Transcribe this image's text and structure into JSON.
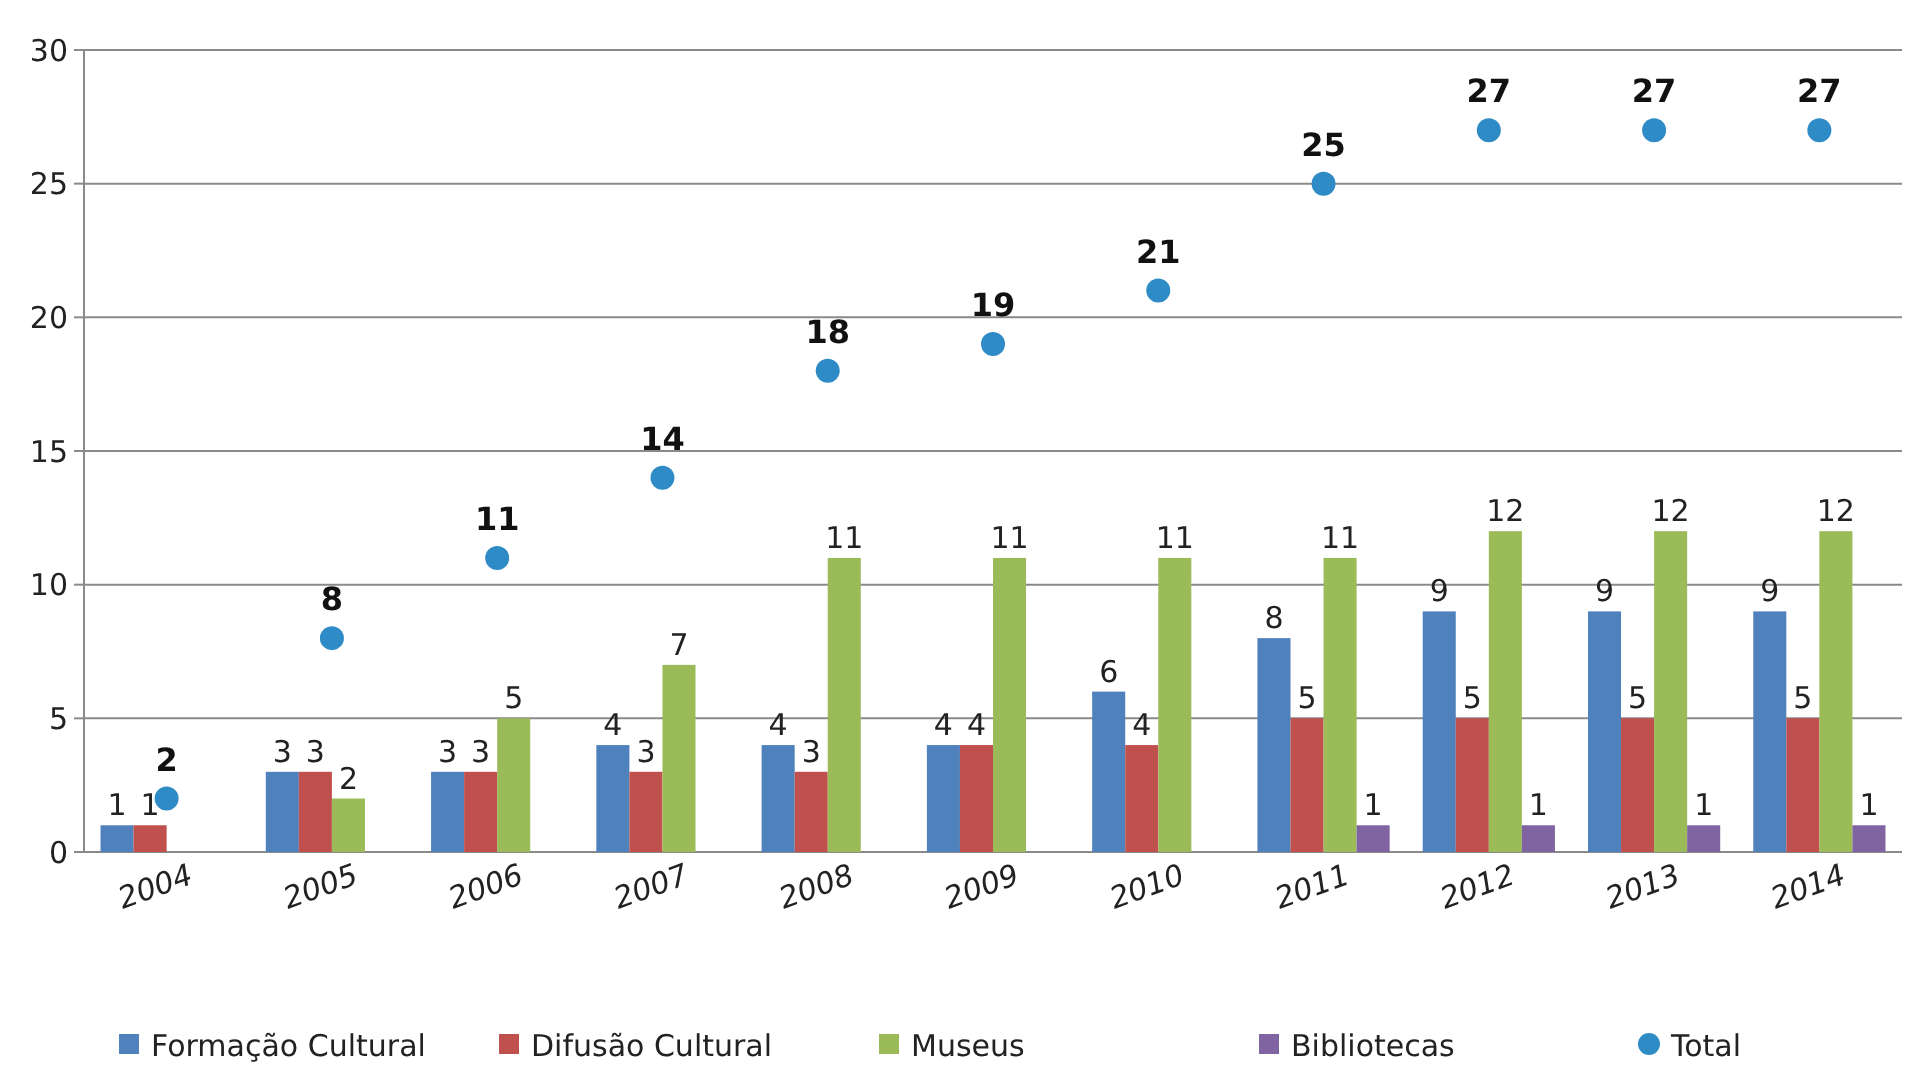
{
  "chart_data": {
    "type": "bar",
    "categories": [
      "2004",
      "2005",
      "2006",
      "2007",
      "2008",
      "2009",
      "2010",
      "2011",
      "2012",
      "2013",
      "2014"
    ],
    "series": [
      {
        "name": "Formação Cultural",
        "color": "#4f81bd",
        "values": [
          1,
          3,
          3,
          4,
          4,
          4,
          6,
          8,
          9,
          9,
          9
        ]
      },
      {
        "name": "Difusão Cultural",
        "color": "#c0504d",
        "values": [
          1,
          3,
          3,
          3,
          3,
          4,
          4,
          5,
          5,
          5,
          5
        ]
      },
      {
        "name": "Museus",
        "color": "#9bbb59",
        "values": [
          null,
          2,
          5,
          7,
          11,
          11,
          11,
          11,
          12,
          12,
          12
        ]
      },
      {
        "name": "Bibliotecas",
        "color": "#8064a2",
        "values": [
          null,
          null,
          null,
          null,
          null,
          null,
          null,
          1,
          1,
          1,
          1
        ]
      },
      {
        "name": "Total",
        "type": "scatter",
        "marker": "circle",
        "color": "#2e8bc6",
        "values": [
          2,
          8,
          11,
          14,
          18,
          19,
          21,
          25,
          27,
          27,
          27
        ]
      }
    ],
    "ylim": [
      0,
      30
    ],
    "yticks": [
      0,
      5,
      10,
      15,
      20,
      25,
      30
    ],
    "grid": "y",
    "legend": "bottom",
    "data_labels": true
  }
}
